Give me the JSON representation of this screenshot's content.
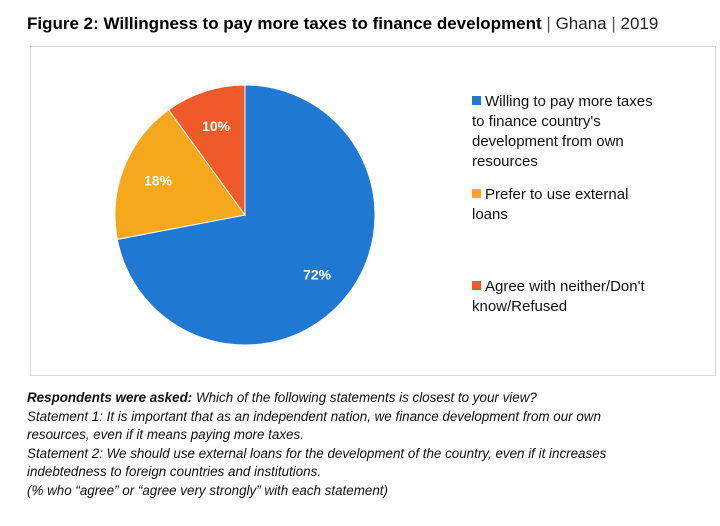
{
  "figure": {
    "title_main": "Figure 2: Willingness to pay more taxes to finance development",
    "title_country": "Ghana",
    "title_year": "2019",
    "separator": "|"
  },
  "chart_data": {
    "type": "pie",
    "title": "Figure 2: Willingness to pay more taxes to finance development | Ghana | 2019",
    "slices": [
      {
        "label": "Willing to pay more taxes to finance country's development from own resources",
        "value": 72,
        "display": "72%",
        "color": "#1f78d1"
      },
      {
        "label": "Prefer to use external loans",
        "value": 18,
        "display": "18%",
        "color": "#f5a81c"
      },
      {
        "label": "Agree with neither/Don't know/Refused",
        "value": 10,
        "display": "10%",
        "color": "#f05a28"
      }
    ],
    "start": "12 o'clock",
    "direction": "clockwise",
    "legend_position": "right"
  },
  "legend": [
    {
      "lines": [
        "Willing to pay more taxes",
        "to finance country's",
        "development from own",
        "resources"
      ],
      "color": "#1f78d1"
    },
    {
      "lines": [
        "Prefer to use external",
        "loans"
      ],
      "color": "#f5a81c"
    },
    {
      "lines": [
        "Agree with neither/Don't",
        "know/Refused"
      ],
      "color": "#f05a28"
    }
  ],
  "notes": {
    "asked_label": "Respondents were asked:",
    "asked_text": " Which of the following statements is closest to your view?",
    "statement1_line1": "Statement 1: It is important that as an independent nation, we finance development from our own",
    "statement1_line2": "resources, even if it means paying more taxes.",
    "statement2_line1": "Statement 2: We should use external loans for the development of the country, even if it increases",
    "statement2_line2": "indebtedness to foreign countries and institutions.",
    "footnote": "(% who “agree” or “agree very strongly” with each statement)"
  }
}
